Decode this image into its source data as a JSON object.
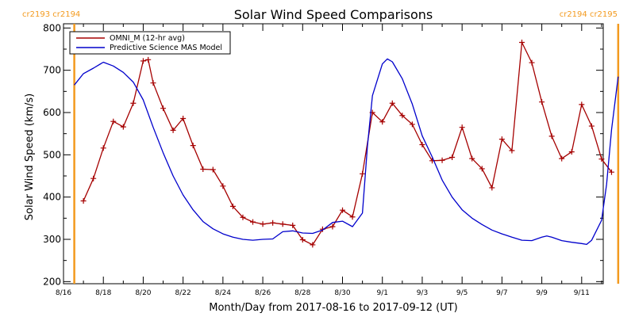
{
  "chart_data": {
    "type": "line",
    "title": "Solar Wind Speed Comparisons",
    "xlabel": "Month/Day from 2017-08-16 to 2017-09-12 (UT)",
    "ylabel": "Solar Wind Speed (km/s)",
    "xlim": [
      "2017-08-16",
      "2017-09-12"
    ],
    "ylim": [
      195,
      810
    ],
    "yticks": [
      200,
      300,
      400,
      500,
      600,
      700,
      800
    ],
    "xticks": [
      {
        "date": "2017-08-16",
        "label": "8/16"
      },
      {
        "date": "2017-08-18",
        "label": "8/18"
      },
      {
        "date": "2017-08-20",
        "label": "8/20"
      },
      {
        "date": "2017-08-22",
        "label": "8/22"
      },
      {
        "date": "2017-08-24",
        "label": "8/24"
      },
      {
        "date": "2017-08-26",
        "label": "8/26"
      },
      {
        "date": "2017-08-28",
        "label": "8/28"
      },
      {
        "date": "2017-08-30",
        "label": "8/30"
      },
      {
        "date": "2017-09-01",
        "label": "9/1"
      },
      {
        "date": "2017-09-03",
        "label": "9/3"
      },
      {
        "date": "2017-09-05",
        "label": "9/5"
      },
      {
        "date": "2017-09-07",
        "label": "9/7"
      },
      {
        "date": "2017-09-09",
        "label": "9/9"
      },
      {
        "date": "2017-09-11",
        "label": "9/11"
      }
    ],
    "carrington_markers": [
      {
        "date": "2017-08-16 13:00",
        "label": "cr2193 cr2194",
        "position": "left",
        "color": "#f39a1e"
      },
      {
        "date": "2017-09-12 20:00",
        "label": "cr2194 cr2195",
        "position": "right",
        "color": "#f39a1e"
      }
    ],
    "legend_position": "top-left",
    "series": [
      {
        "name": "OMNI_M (12-hr avg)",
        "color": "#a50000",
        "marker": "plus",
        "points": [
          [
            "2017-08-17 00:00",
            391
          ],
          [
            "2017-08-17 12:00",
            444
          ],
          [
            "2017-08-18 00:00",
            516
          ],
          [
            "2017-08-18 12:00",
            579
          ],
          [
            "2017-08-19 00:00",
            566
          ],
          [
            "2017-08-19 12:00",
            622
          ],
          [
            "2017-08-20 00:00",
            722
          ],
          [
            "2017-08-20 06:00",
            725
          ],
          [
            "2017-08-20 12:00",
            670
          ],
          [
            "2017-08-21 00:00",
            610
          ],
          [
            "2017-08-21 12:00",
            558
          ],
          [
            "2017-08-22 00:00",
            586
          ],
          [
            "2017-08-22 12:00",
            522
          ],
          [
            "2017-08-23 00:00",
            466
          ],
          [
            "2017-08-23 12:00",
            465
          ],
          [
            "2017-08-24 00:00",
            426
          ],
          [
            "2017-08-24 12:00",
            378
          ],
          [
            "2017-08-25 00:00",
            352
          ],
          [
            "2017-08-25 12:00",
            341
          ],
          [
            "2017-08-26 00:00",
            336
          ],
          [
            "2017-08-26 12:00",
            339
          ],
          [
            "2017-08-27 00:00",
            336
          ],
          [
            "2017-08-27 12:00",
            333
          ],
          [
            "2017-08-28 00:00",
            299
          ],
          [
            "2017-08-28 12:00",
            287
          ],
          [
            "2017-08-29 00:00",
            324
          ],
          [
            "2017-08-29 12:00",
            330
          ],
          [
            "2017-08-30 00:00",
            369
          ],
          [
            "2017-08-30 12:00",
            353
          ],
          [
            "2017-08-31 00:00",
            455
          ],
          [
            "2017-08-31 12:00",
            600
          ],
          [
            "2017-09-01 00:00",
            578
          ],
          [
            "2017-09-01 12:00",
            622
          ],
          [
            "2017-09-02 00:00",
            593
          ],
          [
            "2017-09-02 12:00",
            572
          ],
          [
            "2017-09-03 00:00",
            524
          ],
          [
            "2017-09-03 12:00",
            486
          ],
          [
            "2017-09-04 00:00",
            487
          ],
          [
            "2017-09-04 12:00",
            494
          ],
          [
            "2017-09-05 00:00",
            565
          ],
          [
            "2017-09-05 12:00",
            491
          ],
          [
            "2017-09-06 00:00",
            467
          ],
          [
            "2017-09-06 12:00",
            422
          ],
          [
            "2017-09-07 00:00",
            537
          ],
          [
            "2017-09-07 12:00",
            510
          ],
          [
            "2017-09-08 00:00",
            766
          ],
          [
            "2017-09-08 12:00",
            718
          ],
          [
            "2017-09-09 00:00",
            625
          ],
          [
            "2017-09-09 12:00",
            544
          ],
          [
            "2017-09-10 00:00",
            491
          ],
          [
            "2017-09-10 12:00",
            507
          ],
          [
            "2017-09-11 00:00",
            619
          ],
          [
            "2017-09-11 12:00",
            568
          ],
          [
            "2017-09-12 00:00",
            490
          ],
          [
            "2017-09-12 12:00",
            459
          ]
        ]
      },
      {
        "name": "Predictive Science MAS Model",
        "color": "#0000cc",
        "marker": "none",
        "points": [
          [
            "2017-08-16 13:00",
            665
          ],
          [
            "2017-08-17 00:00",
            692
          ],
          [
            "2017-08-17 12:00",
            705
          ],
          [
            "2017-08-18 00:00",
            719
          ],
          [
            "2017-08-18 12:00",
            710
          ],
          [
            "2017-08-19 00:00",
            695
          ],
          [
            "2017-08-19 12:00",
            672
          ],
          [
            "2017-08-20 00:00",
            630
          ],
          [
            "2017-08-20 12:00",
            565
          ],
          [
            "2017-08-21 00:00",
            505
          ],
          [
            "2017-08-21 12:00",
            450
          ],
          [
            "2017-08-22 00:00",
            405
          ],
          [
            "2017-08-22 12:00",
            370
          ],
          [
            "2017-08-23 00:00",
            342
          ],
          [
            "2017-08-23 12:00",
            325
          ],
          [
            "2017-08-24 00:00",
            313
          ],
          [
            "2017-08-24 12:00",
            305
          ],
          [
            "2017-08-25 00:00",
            300
          ],
          [
            "2017-08-25 12:00",
            298
          ],
          [
            "2017-08-26 00:00",
            300
          ],
          [
            "2017-08-26 12:00",
            301
          ],
          [
            "2017-08-27 00:00",
            318
          ],
          [
            "2017-08-27 12:00",
            320
          ],
          [
            "2017-08-28 00:00",
            315
          ],
          [
            "2017-08-28 12:00",
            314
          ],
          [
            "2017-08-29 00:00",
            322
          ],
          [
            "2017-08-29 12:00",
            340
          ],
          [
            "2017-08-30 00:00",
            343
          ],
          [
            "2017-08-30 12:00",
            330
          ],
          [
            "2017-08-31 00:00",
            362
          ],
          [
            "2017-08-31 06:00",
            520
          ],
          [
            "2017-08-31 12:00",
            640
          ],
          [
            "2017-09-01 00:00",
            715
          ],
          [
            "2017-09-01 06:00",
            727
          ],
          [
            "2017-09-01 12:00",
            720
          ],
          [
            "2017-09-02 00:00",
            680
          ],
          [
            "2017-09-02 12:00",
            620
          ],
          [
            "2017-09-03 00:00",
            545
          ],
          [
            "2017-09-03 12:00",
            495
          ],
          [
            "2017-09-04 00:00",
            440
          ],
          [
            "2017-09-04 12:00",
            400
          ],
          [
            "2017-09-05 00:00",
            370
          ],
          [
            "2017-09-05 12:00",
            350
          ],
          [
            "2017-09-06 00:00",
            335
          ],
          [
            "2017-09-06 12:00",
            322
          ],
          [
            "2017-09-07 00:00",
            313
          ],
          [
            "2017-09-07 12:00",
            305
          ],
          [
            "2017-09-08 00:00",
            298
          ],
          [
            "2017-09-08 12:00",
            297
          ],
          [
            "2017-09-09 00:00",
            305
          ],
          [
            "2017-09-09 06:00",
            308
          ],
          [
            "2017-09-09 12:00",
            305
          ],
          [
            "2017-09-10 00:00",
            297
          ],
          [
            "2017-09-10 12:00",
            293
          ],
          [
            "2017-09-11 00:00",
            290
          ],
          [
            "2017-09-11 06:00",
            288
          ],
          [
            "2017-09-11 12:00",
            298
          ],
          [
            "2017-09-12 00:00",
            345
          ],
          [
            "2017-09-12 06:00",
            430
          ],
          [
            "2017-09-12 12:00",
            560
          ],
          [
            "2017-09-12 20:00",
            685
          ]
        ]
      }
    ]
  }
}
